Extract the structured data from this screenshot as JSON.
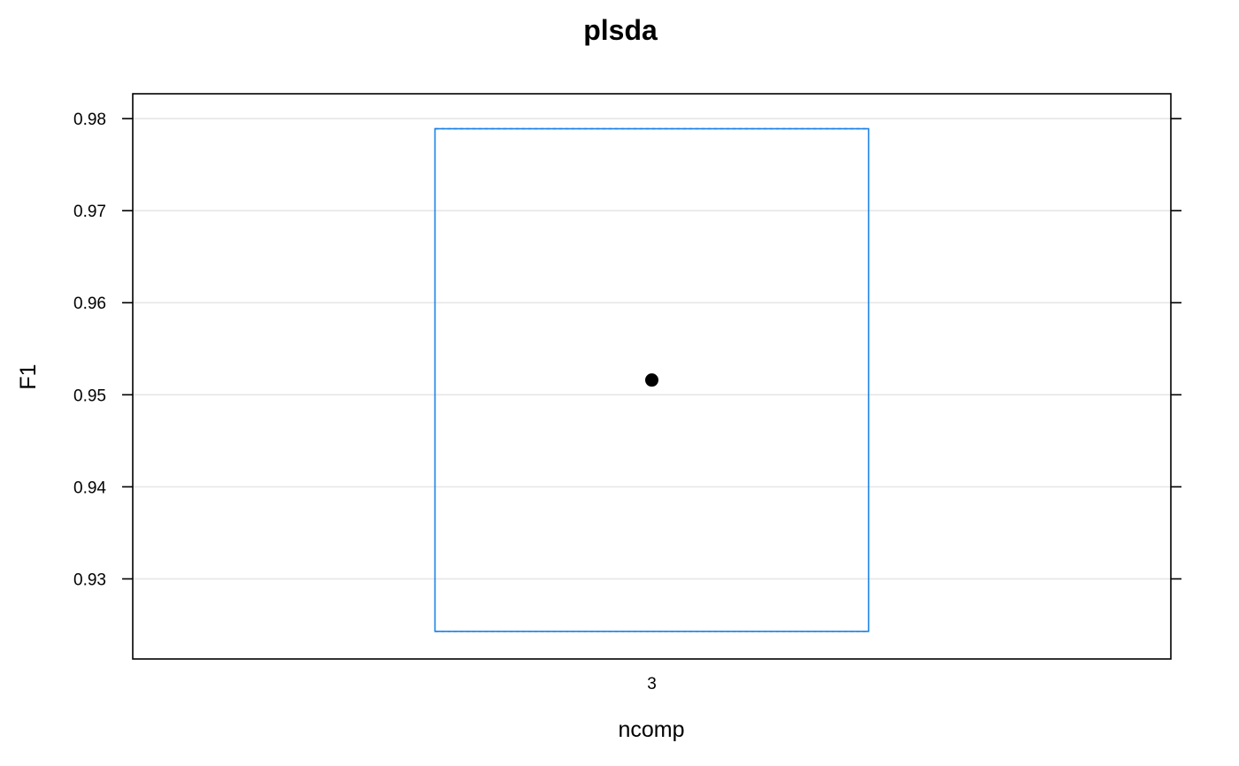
{
  "chart_data": {
    "type": "box",
    "title": "plsda",
    "xlabel": "ncomp",
    "ylabel": "F1",
    "categories": [
      "3"
    ],
    "ylim": [
      0.9213,
      0.9827
    ],
    "yticks": [
      0.93,
      0.94,
      0.95,
      0.96,
      0.97,
      0.98
    ],
    "ytick_labels": [
      "0.93",
      "0.94",
      "0.95",
      "0.96",
      "0.97",
      "0.98"
    ],
    "boxes": [
      {
        "category": "3",
        "min": 0.9243,
        "q1": 0.9243,
        "median": 0.9516,
        "q3": 0.9789,
        "max": 0.9789
      }
    ],
    "grid": true,
    "colors": {
      "box": "#1a82e6",
      "median_point": "#000000",
      "grid": "#e6e6e6",
      "frame": "#000000"
    }
  }
}
